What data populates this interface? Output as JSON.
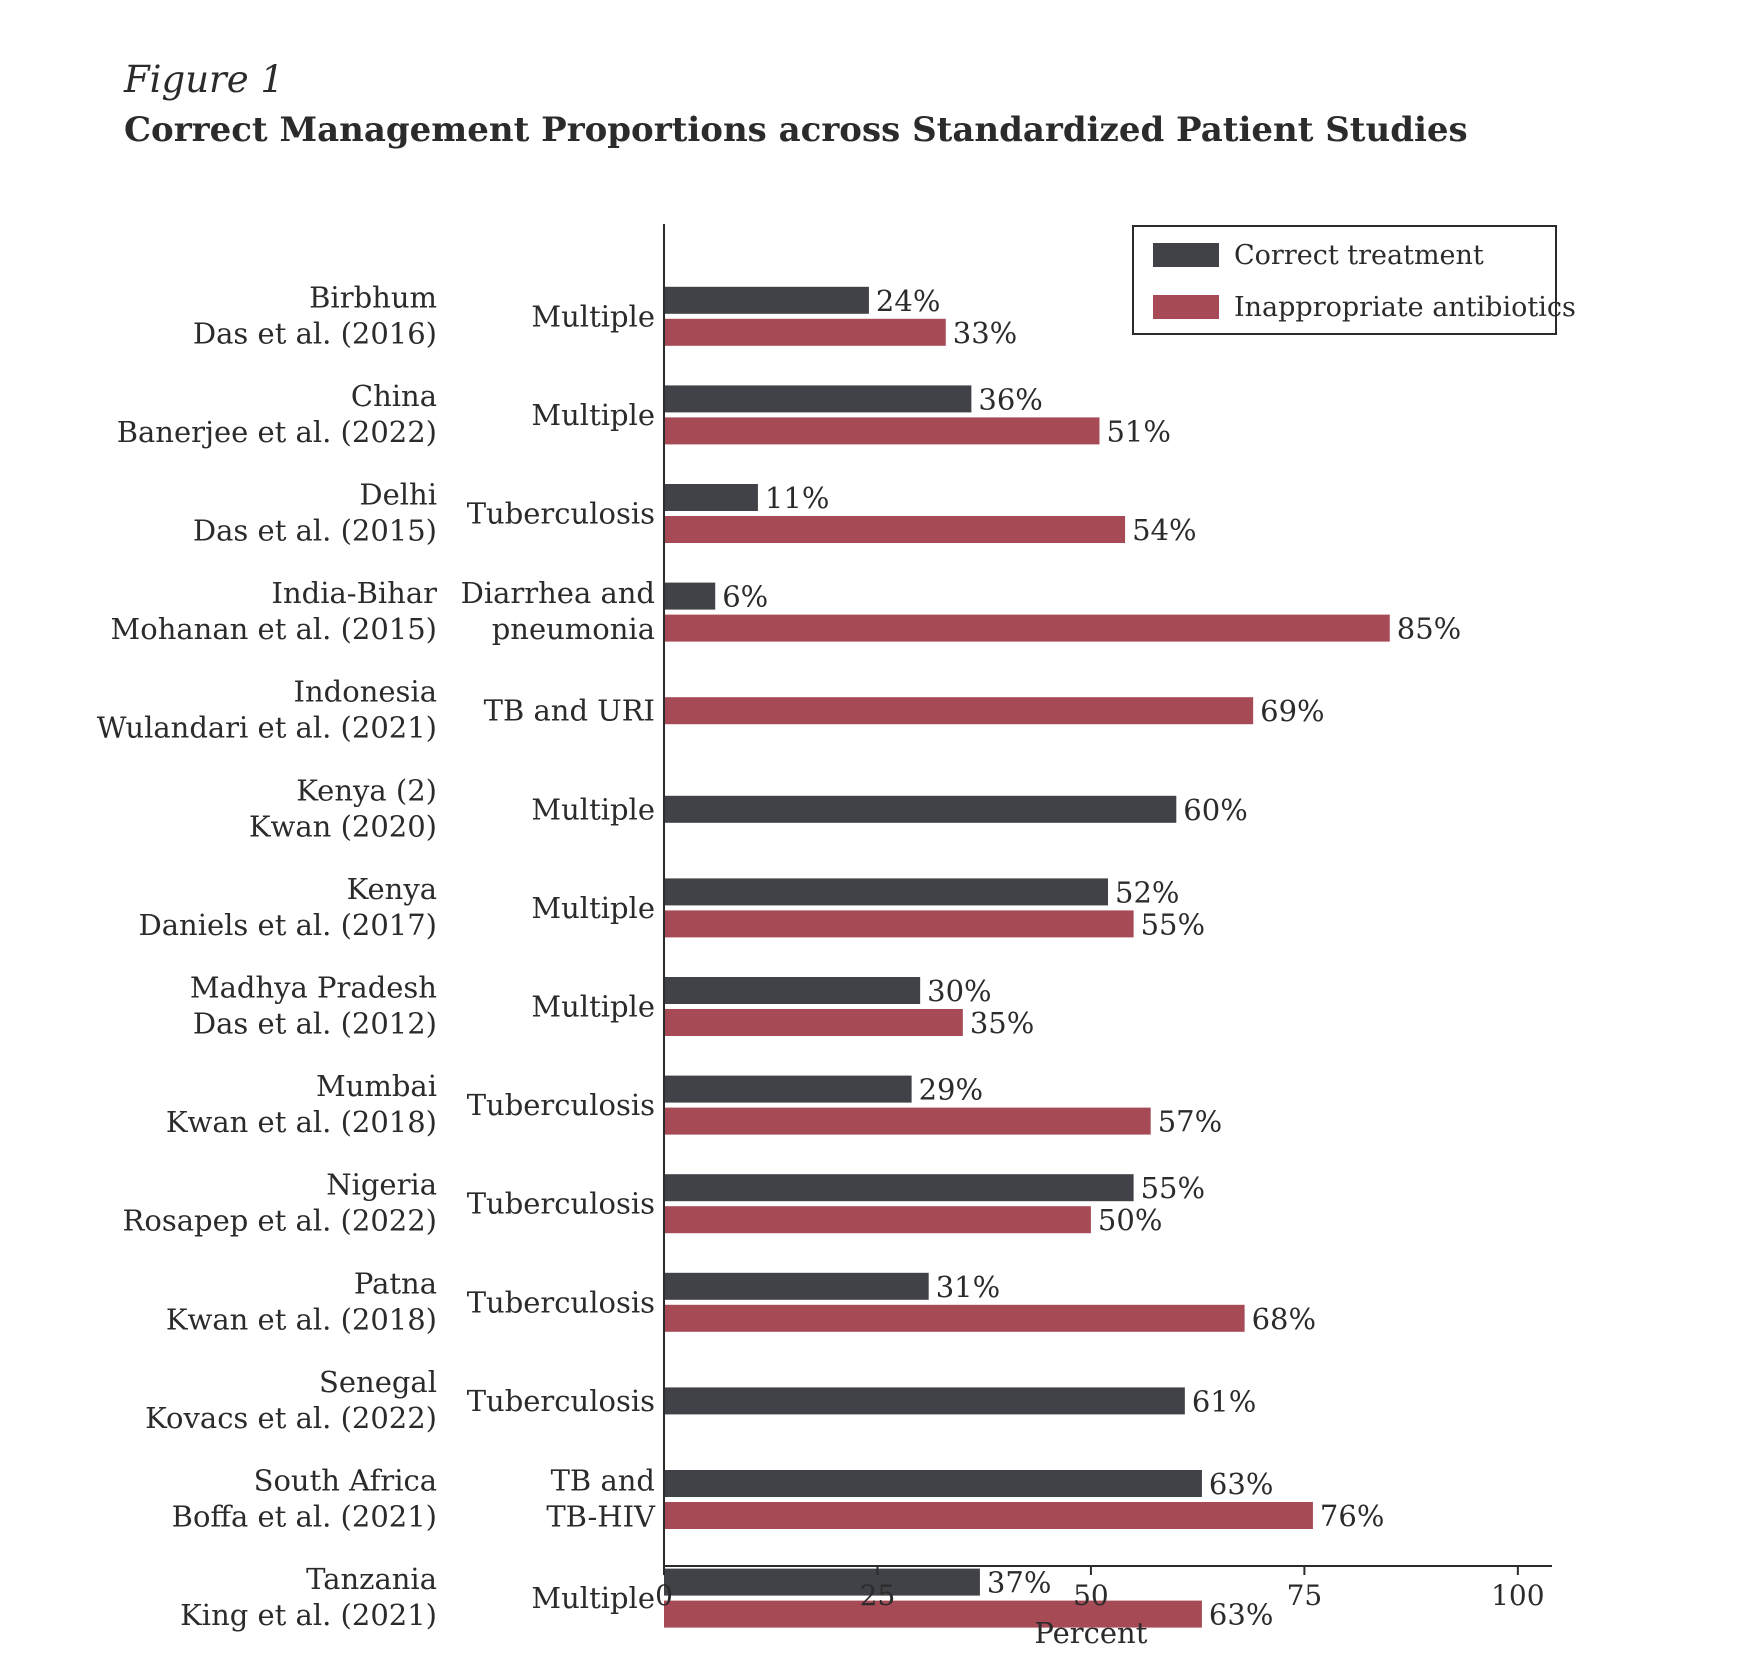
{
  "figure": {
    "label": "Figure 1",
    "title": "Correct Management Proportions across Standardized Patient Studies"
  },
  "chart_data": {
    "type": "bar",
    "orientation": "horizontal",
    "xlabel": "Percent",
    "xlim": [
      0,
      104
    ],
    "xticks": [
      0,
      25,
      50,
      75,
      100
    ],
    "grid": false,
    "legend_position": "top-right",
    "colors": {
      "correct": "#414247",
      "inappropriate": "#a64a55"
    },
    "series": [
      {
        "key": "correct",
        "name": "Correct treatment"
      },
      {
        "key": "inappropriate",
        "name": "Inappropriate antibiotics"
      }
    ],
    "studies": [
      {
        "location": "Birbhum",
        "citation": "Das et al. (2016)",
        "condition": [
          "Multiple"
        ],
        "correct": 24,
        "inappropriate": 33
      },
      {
        "location": "China",
        "citation": "Banerjee et al. (2022)",
        "condition": [
          "Multiple"
        ],
        "correct": 36,
        "inappropriate": 51
      },
      {
        "location": "Delhi",
        "citation": "Das et al. (2015)",
        "condition": [
          "Tuberculosis"
        ],
        "correct": 11,
        "inappropriate": 54
      },
      {
        "location": "India-Bihar",
        "citation": "Mohanan et al. (2015)",
        "condition": [
          "Diarrhea and",
          "pneumonia"
        ],
        "correct": 6,
        "inappropriate": 85
      },
      {
        "location": "Indonesia",
        "citation": "Wulandari et al. (2021)",
        "condition": [
          "TB and URI"
        ],
        "correct": null,
        "inappropriate": 69
      },
      {
        "location": "Kenya (2)",
        "citation": "Kwan (2020)",
        "condition": [
          "Multiple"
        ],
        "correct": 60,
        "inappropriate": null
      },
      {
        "location": "Kenya",
        "citation": "Daniels et al. (2017)",
        "condition": [
          "Multiple"
        ],
        "correct": 52,
        "inappropriate": 55
      },
      {
        "location": "Madhya Pradesh",
        "citation": "Das et al. (2012)",
        "condition": [
          "Multiple"
        ],
        "correct": 30,
        "inappropriate": 35
      },
      {
        "location": "Mumbai",
        "citation": "Kwan et al. (2018)",
        "condition": [
          "Tuberculosis"
        ],
        "correct": 29,
        "inappropriate": 57
      },
      {
        "location": "Nigeria",
        "citation": "Rosapep et al. (2022)",
        "condition": [
          "Tuberculosis"
        ],
        "correct": 55,
        "inappropriate": 50
      },
      {
        "location": "Patna",
        "citation": "Kwan et al. (2018)",
        "condition": [
          "Tuberculosis"
        ],
        "correct": 31,
        "inappropriate": 68
      },
      {
        "location": "Senegal",
        "citation": "Kovacs et al. (2022)",
        "condition": [
          "Tuberculosis"
        ],
        "correct": 61,
        "inappropriate": null
      },
      {
        "location": "South Africa",
        "citation": "Boffa et al. (2021)",
        "condition": [
          "TB and",
          "TB-HIV"
        ],
        "correct": 63,
        "inappropriate": 76
      },
      {
        "location": "Tanzania",
        "citation": "King et al. (2021)",
        "condition": [
          "Multiple"
        ],
        "correct": 37,
        "inappropriate": 63
      }
    ]
  }
}
